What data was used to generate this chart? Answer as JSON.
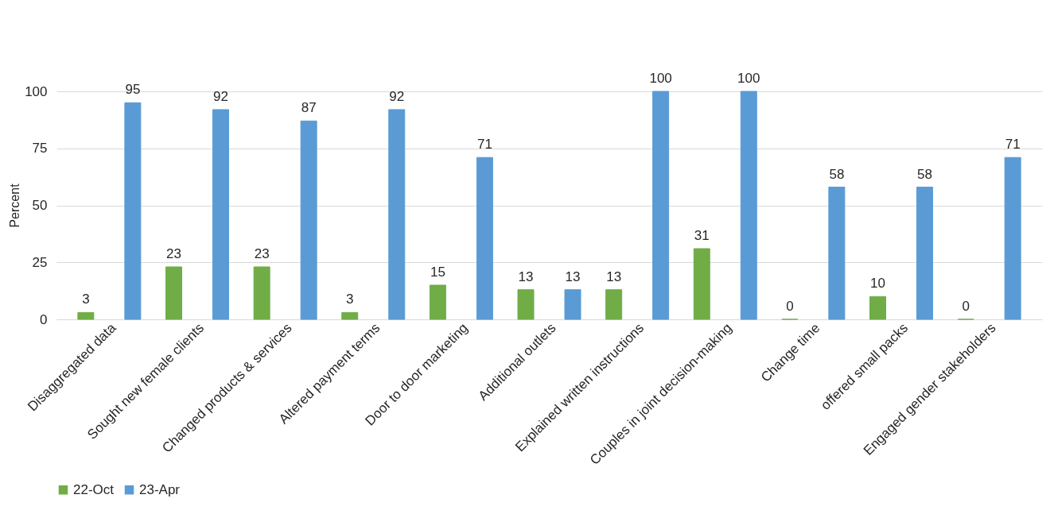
{
  "chart_data": {
    "type": "bar",
    "ylabel": "Percent",
    "categories": [
      "Disaggregated data",
      "Sought new female clients",
      "Changed products & services",
      "Altered payment terms",
      "Door to door marketing",
      "Additional outlets",
      "Explained written instructions",
      "Couples in joint decision-making",
      "Change time",
      "offered small packs",
      "Engaged gender stakeholders"
    ],
    "series": [
      {
        "name": "22-Oct",
        "color": "#70ad47",
        "values": [
          3,
          23,
          23,
          3,
          15,
          13,
          13,
          31,
          0,
          10,
          0
        ]
      },
      {
        "name": "23-Apr",
        "color": "#5b9bd5",
        "values": [
          95,
          92,
          87,
          92,
          71,
          13,
          100,
          100,
          58,
          58,
          71
        ]
      }
    ],
    "ylim": [
      0,
      100
    ],
    "yticks": [
      0,
      25,
      50,
      75,
      100
    ],
    "grid": "y",
    "legend": "bottom",
    "data_labels": true
  }
}
